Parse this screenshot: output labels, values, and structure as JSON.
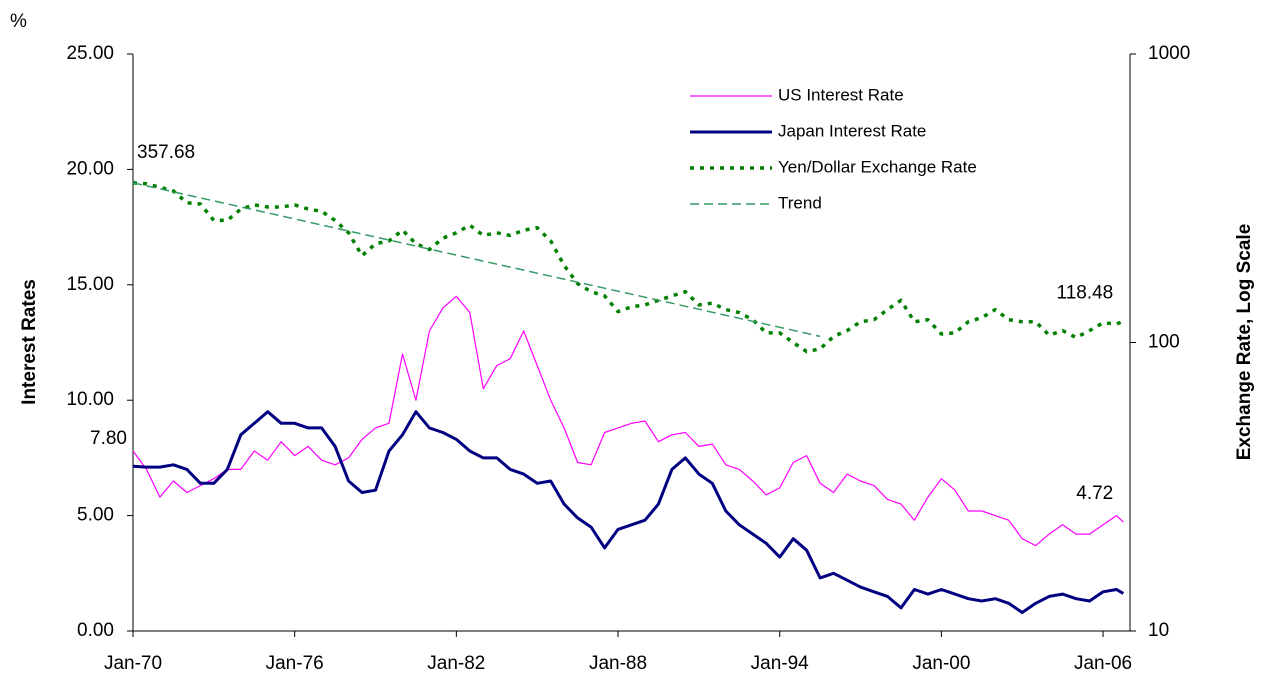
{
  "chart_data": {
    "type": "line",
    "unit_label": "%",
    "ylabel": "Interest Rates",
    "y2label": "Exchange Rate, Log Scale",
    "y2scale": "log",
    "legend": "top-center",
    "x": [
      1970,
      1970.5,
      1971,
      1971.5,
      1972,
      1972.5,
      1973,
      1973.5,
      1974,
      1974.5,
      1975,
      1975.5,
      1976,
      1976.5,
      1977,
      1977.5,
      1978,
      1978.5,
      1979,
      1979.5,
      1980,
      1980.5,
      1981,
      1981.5,
      1982,
      1982.5,
      1983,
      1983.5,
      1984,
      1984.5,
      1985,
      1985.5,
      1986,
      1986.5,
      1987,
      1987.5,
      1988,
      1988.5,
      1989,
      1989.5,
      1990,
      1990.5,
      1991,
      1991.5,
      1992,
      1992.5,
      1993,
      1993.5,
      1994,
      1994.5,
      1995,
      1995.5,
      1996,
      1996.5,
      1997,
      1997.5,
      1998,
      1998.5,
      1999,
      1999.5,
      2000,
      2000.5,
      2001,
      2001.5,
      2002,
      2002.5,
      2003,
      2003.5,
      2004,
      2004.5,
      2005,
      2005.5,
      2006,
      2006.5,
      2006.75
    ],
    "xlim": [
      1970,
      2007
    ],
    "xticks": [
      {
        "value": 1970,
        "label": "Jan-70"
      },
      {
        "value": 1976,
        "label": "Jan-76"
      },
      {
        "value": 1982,
        "label": "Jan-82"
      },
      {
        "value": 1988,
        "label": "Jan-88"
      },
      {
        "value": 1994,
        "label": "Jan-94"
      },
      {
        "value": 2000,
        "label": "Jan-00"
      },
      {
        "value": 2006,
        "label": "Jan-06"
      }
    ],
    "ylim": [
      0,
      25
    ],
    "yticks": [
      {
        "value": 0,
        "label": "0.00"
      },
      {
        "value": 5,
        "label": "5.00"
      },
      {
        "value": 10,
        "label": "10.00"
      },
      {
        "value": 15,
        "label": "15.00"
      },
      {
        "value": 20,
        "label": "20.00"
      },
      {
        "value": 25,
        "label": "25.00"
      }
    ],
    "y2lim": [
      10,
      1000
    ],
    "y2ticks": [
      10,
      100,
      1000
    ],
    "series": [
      {
        "name": "US Interest Rate",
        "color": "#ff00ff",
        "width": 1.2,
        "style": "solid",
        "values": [
          7.8,
          7.0,
          5.8,
          6.5,
          6.0,
          6.3,
          6.6,
          7.0,
          7.0,
          7.8,
          7.4,
          8.2,
          7.6,
          8.0,
          7.4,
          7.2,
          7.5,
          8.3,
          8.8,
          9.0,
          12.0,
          10.0,
          13.0,
          14.0,
          14.5,
          13.8,
          10.5,
          11.5,
          11.8,
          13.0,
          11.5,
          10.0,
          8.8,
          7.3,
          7.2,
          8.6,
          8.8,
          9.0,
          9.1,
          8.2,
          8.5,
          8.6,
          8.0,
          8.1,
          7.2,
          7.0,
          6.5,
          5.9,
          6.2,
          7.3,
          7.6,
          6.4,
          6.0,
          6.8,
          6.5,
          6.3,
          5.7,
          5.5,
          4.8,
          5.8,
          6.6,
          6.1,
          5.2,
          5.2,
          5.0,
          4.8,
          4.0,
          3.7,
          4.2,
          4.6,
          4.2,
          4.2,
          4.6,
          5.0,
          4.72
        ],
        "value_labels": [
          "7.80",
          null,
          null,
          null,
          null,
          null,
          null,
          null,
          null,
          null,
          null,
          null,
          null,
          null,
          null,
          null,
          null,
          null,
          null,
          null,
          null,
          null,
          null,
          null,
          null,
          null,
          null,
          null,
          null,
          null,
          null,
          null,
          null,
          null,
          null,
          null,
          null,
          null,
          null,
          null,
          null,
          null,
          null,
          null,
          null,
          null,
          null,
          null,
          null,
          null,
          null,
          null,
          null,
          null,
          null,
          null,
          null,
          null,
          null,
          null,
          null,
          null,
          null,
          null,
          null,
          null,
          null,
          null,
          null,
          null,
          null,
          null,
          null,
          null,
          "4.72"
        ]
      },
      {
        "name": "Japan Interest Rate",
        "color": "#000080",
        "width": 3,
        "style": "solid",
        "values": [
          7.14,
          7.1,
          7.1,
          7.2,
          7.0,
          6.4,
          6.4,
          7.0,
          8.5,
          9.0,
          9.5,
          9.0,
          9.0,
          8.8,
          8.8,
          8.0,
          6.5,
          6.0,
          6.1,
          7.8,
          8.5,
          9.5,
          8.8,
          8.6,
          8.3,
          7.8,
          7.5,
          7.5,
          7.0,
          6.8,
          6.4,
          6.5,
          5.5,
          4.9,
          4.5,
          3.6,
          4.4,
          4.6,
          4.8,
          5.5,
          7.0,
          7.5,
          6.8,
          6.4,
          5.2,
          4.6,
          4.2,
          3.8,
          3.2,
          4.0,
          3.5,
          2.3,
          2.5,
          2.2,
          1.9,
          1.7,
          1.5,
          1.0,
          1.8,
          1.6,
          1.8,
          1.6,
          1.4,
          1.3,
          1.4,
          1.2,
          0.8,
          1.2,
          1.5,
          1.6,
          1.4,
          1.3,
          1.7,
          1.8,
          1.63
        ],
        "value_labels": [
          null,
          null,
          null,
          null,
          null,
          null,
          null,
          null,
          null,
          null,
          null,
          null,
          null,
          null,
          null,
          null,
          null,
          null,
          null,
          null,
          null,
          null,
          null,
          null,
          null,
          null,
          null,
          null,
          null,
          null,
          null,
          null,
          null,
          null,
          null,
          null,
          null,
          null,
          null,
          null,
          null,
          null,
          null,
          null,
          null,
          null,
          null,
          null,
          null,
          null,
          null,
          null,
          null,
          null,
          null,
          null,
          null,
          null,
          null,
          null,
          null,
          null,
          null,
          null,
          null,
          null,
          null,
          null,
          null,
          null,
          null,
          null,
          null,
          null,
          null
        ]
      },
      {
        "name": "Yen/Dollar Exchange Rate",
        "color": "#008000",
        "width": 3.5,
        "style": "dotted",
        "axis": "y2",
        "values": [
          357.68,
          355,
          345,
          335,
          305,
          302,
          265,
          265,
          290,
          300,
          295,
          295,
          300,
          290,
          285,
          265,
          240,
          200,
          220,
          225,
          245,
          220,
          210,
          230,
          240,
          255,
          235,
          240,
          235,
          245,
          250,
          225,
          185,
          160,
          150,
          145,
          128,
          133,
          135,
          140,
          145,
          150,
          135,
          137,
          130,
          127,
          120,
          108,
          108,
          100,
          93,
          95,
          105,
          110,
          118,
          120,
          130,
          140,
          118,
          120,
          107,
          108,
          118,
          122,
          130,
          120,
          118,
          118,
          106,
          110,
          104,
          110,
          117,
          116,
          118.48
        ]
      },
      {
        "name": "Trend",
        "color": "#339966",
        "width": 1.5,
        "style": "dashed",
        "axis": "y2",
        "values": [
          357.68,
          349.2,
          340.9,
          332.8,
          324.9,
          317.2,
          309.7,
          302.3,
          295.1,
          288.1,
          281.3,
          274.6,
          268.1,
          261.7,
          255.5,
          249.4,
          243.5,
          237.7,
          232.1,
          226.6,
          221.2,
          215.9,
          210.8,
          205.8,
          200.9,
          196.1,
          191.5,
          186.9,
          182.5,
          178.2,
          173.9,
          169.8,
          165.8,
          161.8,
          158.0,
          154.2,
          150.6,
          147.0,
          143.5,
          140.1,
          136.8,
          133.5,
          130.4,
          127.3,
          124.2,
          121.3,
          118.4,
          115.6,
          112.9,
          110.2,
          107.6,
          105.0,
          null,
          null,
          null,
          null,
          null,
          null,
          null,
          null,
          null,
          null,
          null,
          null,
          null,
          null,
          null,
          null,
          null,
          null,
          null,
          null,
          null,
          null,
          null
        ]
      }
    ]
  }
}
